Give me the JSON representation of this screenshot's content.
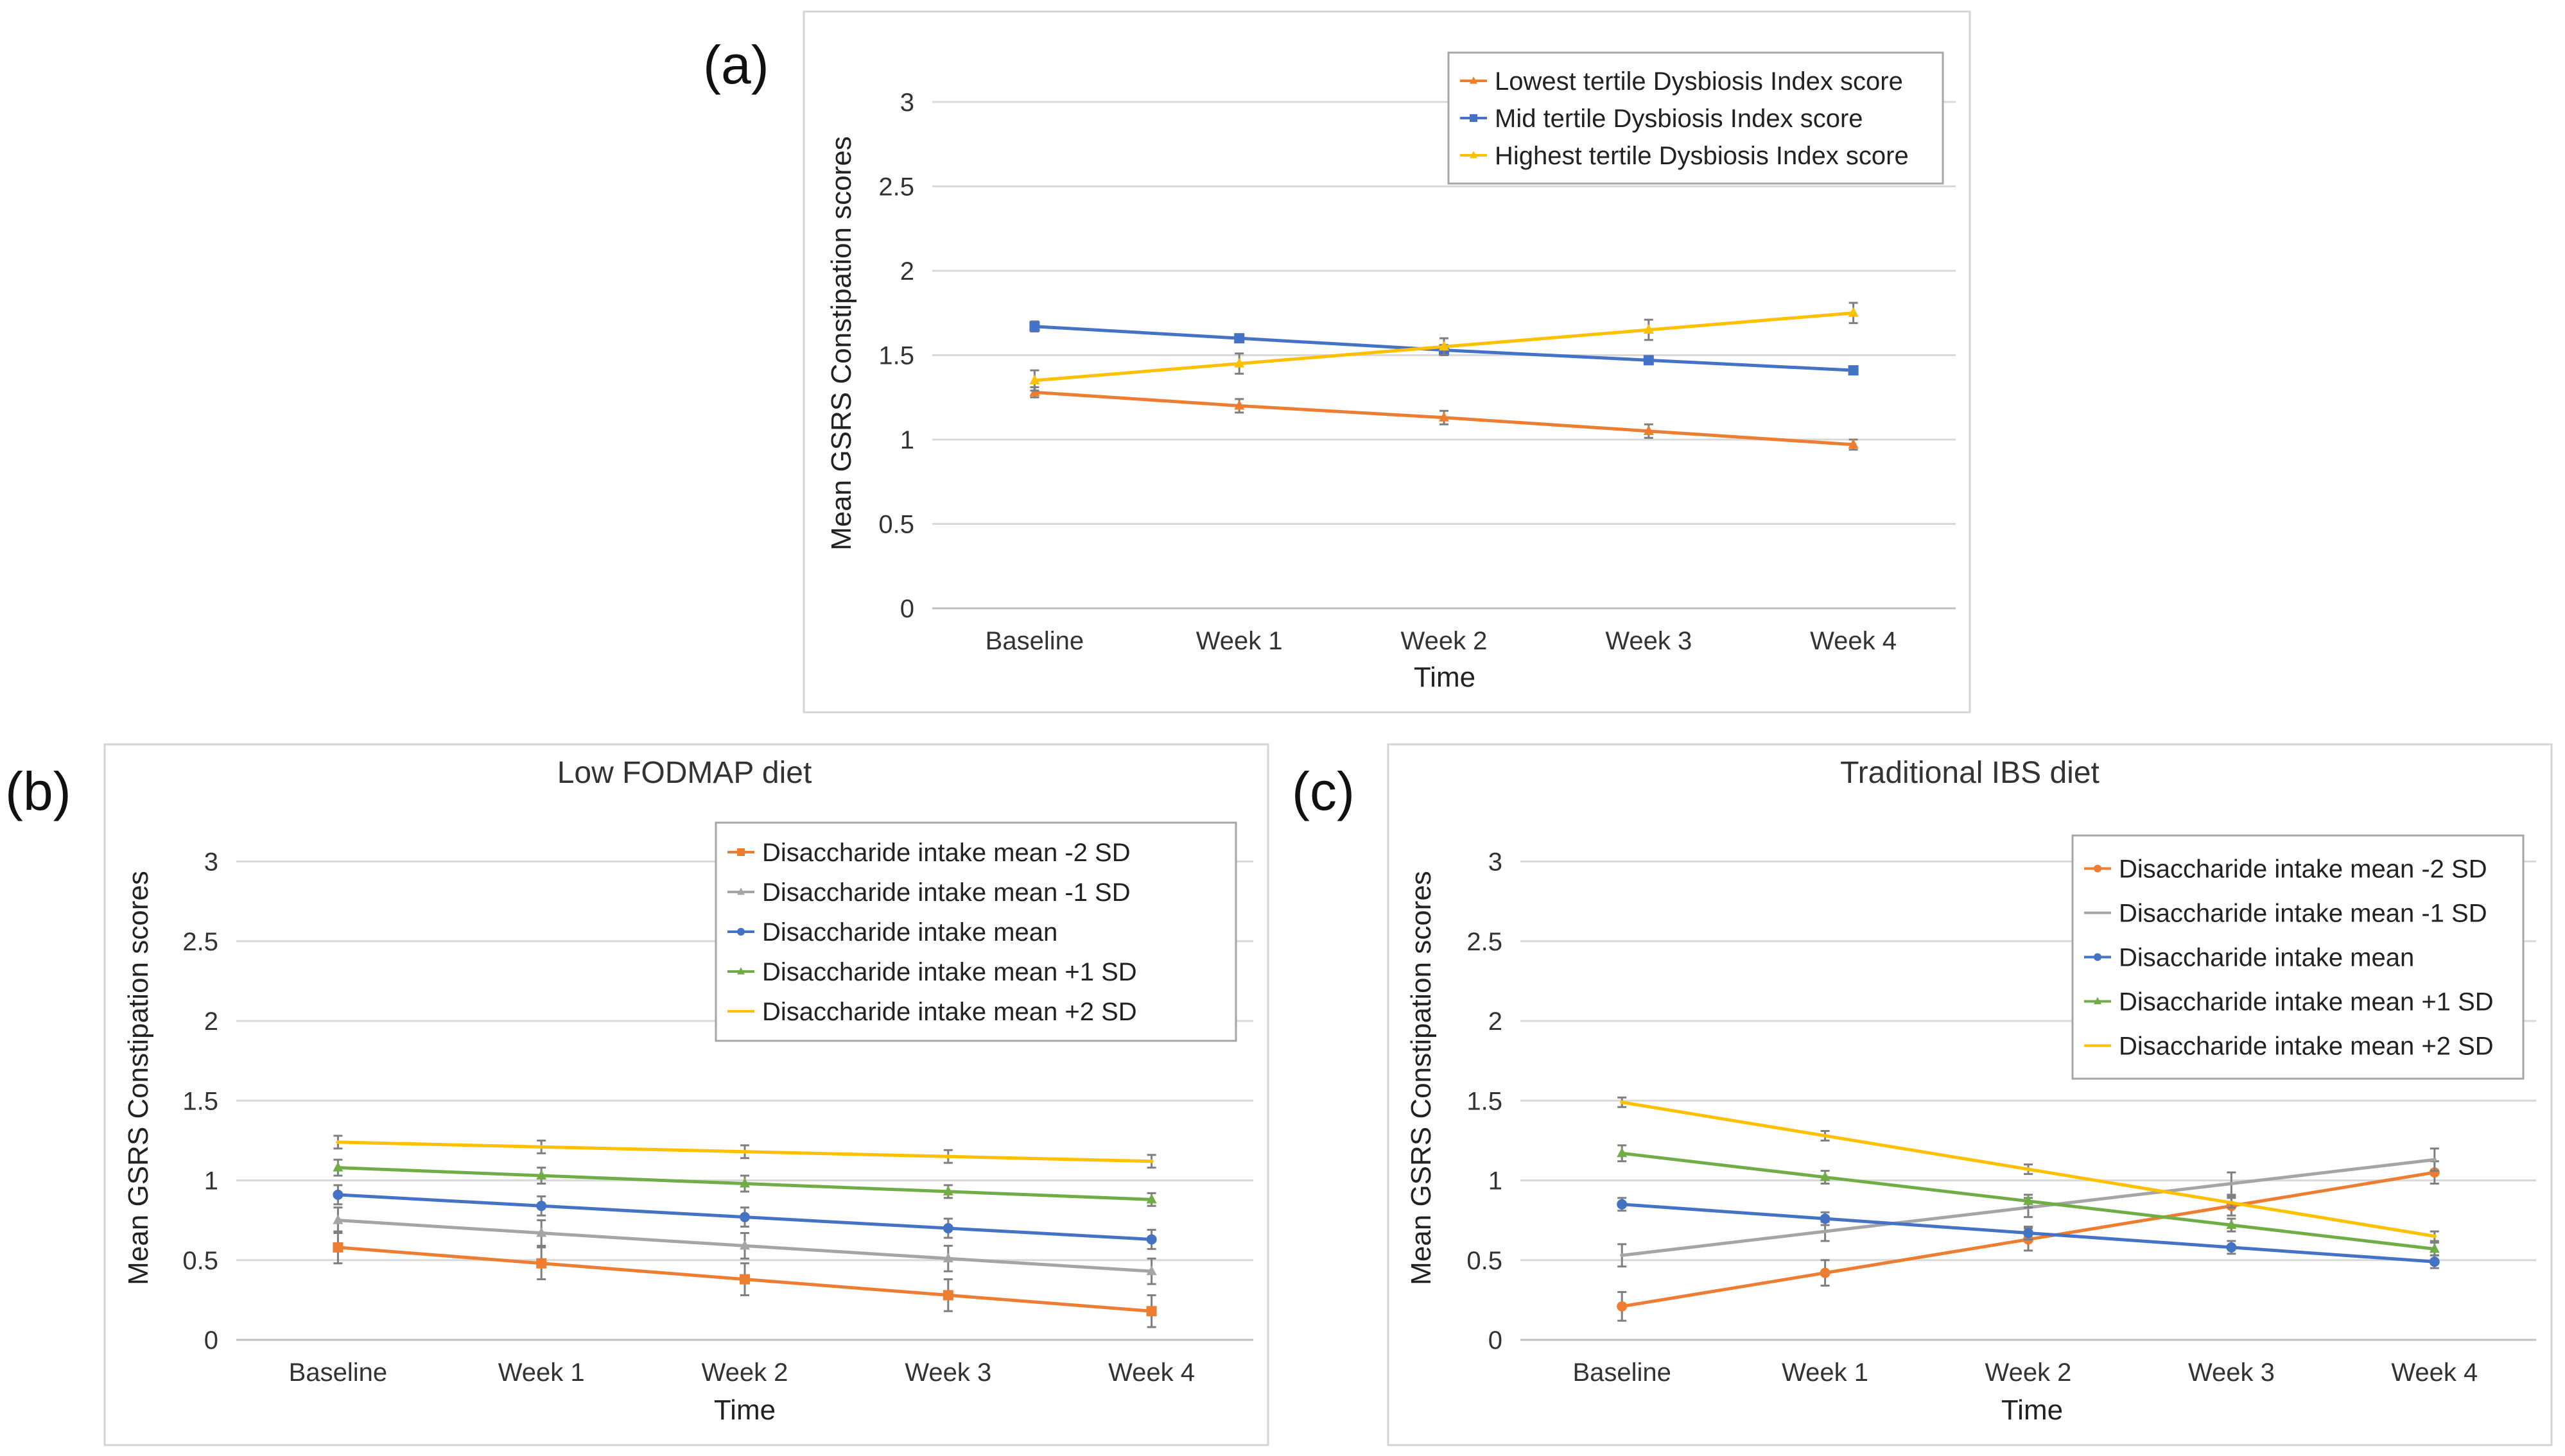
{
  "chart_data": [
    {
      "id": "a",
      "panel_label": "(a)",
      "type": "line",
      "title": "",
      "xlabel": "Time",
      "ylabel": "Mean GSRS Constipation scores",
      "categories": [
        "Baseline",
        "Week 1",
        "Week 2",
        "Week 3",
        "Week 4"
      ],
      "ylim": [
        0,
        3.3
      ],
      "yticks": [
        0,
        0.5,
        1,
        1.5,
        2,
        2.5,
        3
      ],
      "ytick_labels": [
        "0",
        "0.5",
        "1",
        "1.5",
        "2",
        "2.5",
        "3"
      ],
      "grid": true,
      "legend_position": "top-right",
      "series": [
        {
          "name": "Lowest tertile Dysbiosis Index score",
          "color": "#ED7D31",
          "marker": "triangle",
          "values": [
            1.28,
            1.2,
            1.13,
            1.05,
            0.97
          ],
          "errors": [
            0.03,
            0.04,
            0.04,
            0.04,
            0.03
          ]
        },
        {
          "name": "Mid tertile Dysbiosis Index score",
          "color": "#4472C4",
          "marker": "square",
          "values": [
            1.67,
            1.6,
            1.53,
            1.47,
            1.41
          ],
          "errors": [
            0.03,
            0.02,
            0.03,
            0.02,
            0.02
          ]
        },
        {
          "name": "Highest tertile Dysbiosis Index score",
          "color": "#FFC000",
          "marker": "triangle",
          "values": [
            1.35,
            1.45,
            1.55,
            1.65,
            1.75
          ],
          "errors": [
            0.06,
            0.06,
            0.05,
            0.06,
            0.06
          ]
        }
      ]
    },
    {
      "id": "b",
      "panel_label": "(b)",
      "type": "line",
      "title": "Low FODMAP diet",
      "xlabel": "Time",
      "ylabel": "Mean GSRS Constipation scores",
      "categories": [
        "Baseline",
        "Week 1",
        "Week 2",
        "Week 3",
        "Week 4"
      ],
      "ylim": [
        0,
        3.3
      ],
      "yticks": [
        0,
        0.5,
        1,
        1.5,
        2,
        2.5,
        3
      ],
      "ytick_labels": [
        "0",
        "0.5",
        "1",
        "1.5",
        "2",
        "2.5",
        "3"
      ],
      "grid": true,
      "legend_position": "top-right",
      "series": [
        {
          "name": "Disaccharide intake mean -2 SD",
          "color": "#ED7D31",
          "marker": "square",
          "values": [
            0.58,
            0.48,
            0.38,
            0.28,
            0.18
          ],
          "errors": [
            0.1,
            0.1,
            0.1,
            0.1,
            0.1
          ]
        },
        {
          "name": "Disaccharide intake mean -1 SD",
          "color": "#A5A5A5",
          "marker": "triangle",
          "values": [
            0.75,
            0.67,
            0.59,
            0.51,
            0.43
          ],
          "errors": [
            0.08,
            0.08,
            0.08,
            0.08,
            0.08
          ]
        },
        {
          "name": "Disaccharide intake mean",
          "color": "#4472C4",
          "marker": "circle",
          "values": [
            0.91,
            0.84,
            0.77,
            0.7,
            0.63
          ],
          "errors": [
            0.06,
            0.06,
            0.06,
            0.06,
            0.06
          ]
        },
        {
          "name": "Disaccharide intake mean +1 SD",
          "color": "#70AD47",
          "marker": "triangle",
          "values": [
            1.08,
            1.03,
            0.98,
            0.93,
            0.88
          ],
          "errors": [
            0.05,
            0.05,
            0.05,
            0.04,
            0.04
          ]
        },
        {
          "name": "Disaccharide intake mean +2 SD",
          "color": "#FFC000",
          "marker": "none",
          "values": [
            1.24,
            1.21,
            1.18,
            1.15,
            1.12
          ],
          "errors": [
            0.04,
            0.04,
            0.04,
            0.04,
            0.04
          ]
        }
      ]
    },
    {
      "id": "c",
      "panel_label": "(c)",
      "type": "line",
      "title": "Traditional IBS diet",
      "xlabel": "Time",
      "ylabel": "Mean GSRS Constipation scores",
      "categories": [
        "Baseline",
        "Week 1",
        "Week 2",
        "Week 3",
        "Week 4"
      ],
      "ylim": [
        0,
        3.3
      ],
      "yticks": [
        0,
        0.5,
        1,
        1.5,
        2,
        2.5,
        3
      ],
      "ytick_labels": [
        "0",
        "0.5",
        "1",
        "1.5",
        "2",
        "2.5",
        "3"
      ],
      "grid": true,
      "legend_position": "top-right",
      "series": [
        {
          "name": "Disaccharide intake mean -2 SD",
          "color": "#ED7D31",
          "marker": "circle",
          "values": [
            0.21,
            0.42,
            0.63,
            0.84,
            1.05
          ],
          "errors": [
            0.09,
            0.08,
            0.07,
            0.06,
            0.07
          ]
        },
        {
          "name": "Disaccharide intake mean -1 SD",
          "color": "#A5A5A5",
          "marker": "none",
          "values": [
            0.53,
            0.68,
            0.83,
            0.98,
            1.13
          ],
          "errors": [
            0.07,
            0.06,
            0.06,
            0.07,
            0.07
          ]
        },
        {
          "name": "Disaccharide intake mean",
          "color": "#4472C4",
          "marker": "circle",
          "values": [
            0.85,
            0.76,
            0.67,
            0.58,
            0.49
          ],
          "errors": [
            0.04,
            0.04,
            0.04,
            0.04,
            0.04
          ]
        },
        {
          "name": "Disaccharide intake mean +1 SD",
          "color": "#70AD47",
          "marker": "triangle",
          "values": [
            1.17,
            1.02,
            0.87,
            0.72,
            0.57
          ],
          "errors": [
            0.05,
            0.04,
            0.04,
            0.04,
            0.04
          ]
        },
        {
          "name": "Disaccharide intake mean +2 SD",
          "color": "#FFC000",
          "marker": "none",
          "values": [
            1.49,
            1.28,
            1.07,
            0.86,
            0.65
          ],
          "errors": [
            0.03,
            0.03,
            0.03,
            0.03,
            0.03
          ]
        }
      ]
    }
  ]
}
